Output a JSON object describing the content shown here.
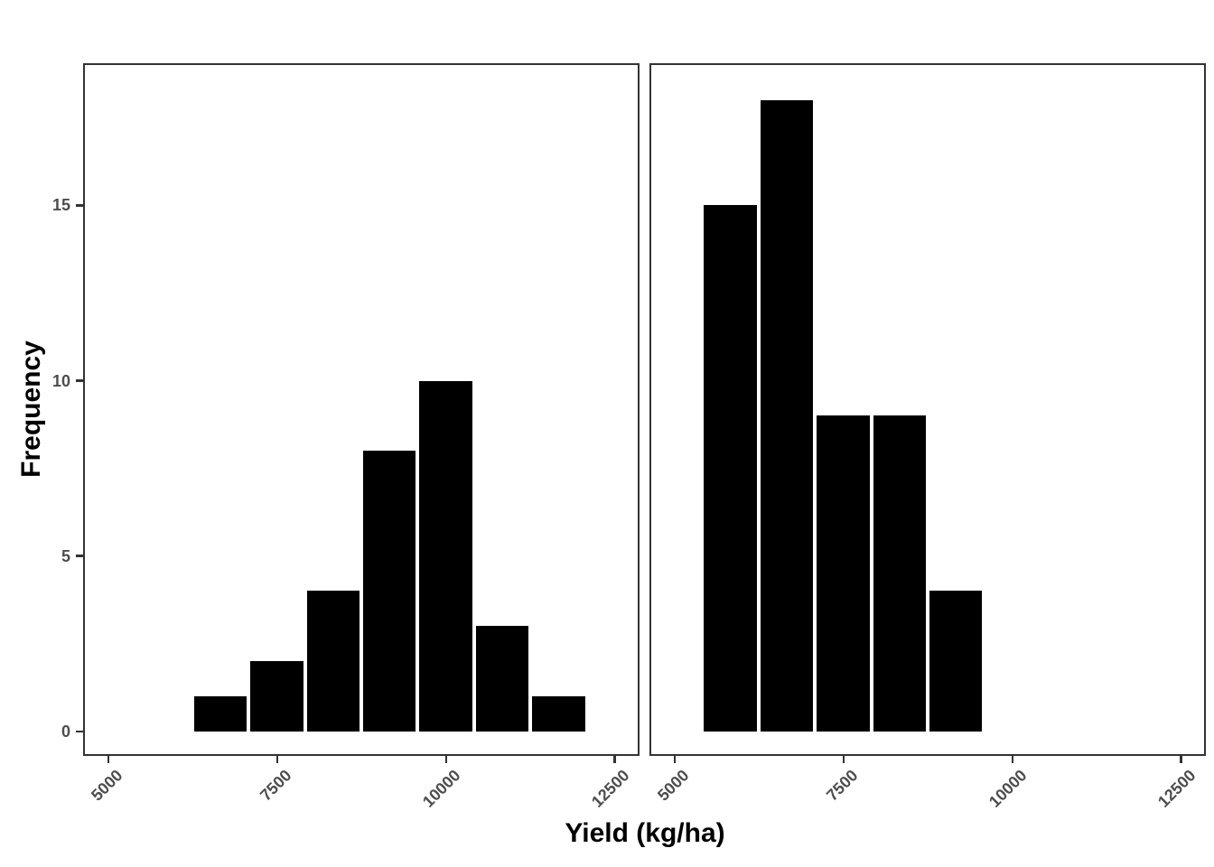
{
  "axes": {
    "x_title": "Yield (kg/ha)",
    "y_title": "Frequency",
    "x_tick_labels": [
      "5000",
      "7500",
      "10000",
      "12500"
    ],
    "y_tick_labels": [
      "0",
      "5",
      "10",
      "15"
    ]
  },
  "chart_data": [
    {
      "type": "histogram",
      "panel": "left",
      "panel_position": 1,
      "xlabel": "Yield (kg/ha)",
      "ylabel": "Frequency",
      "bin_width": 836,
      "bin_edges": [
        6236,
        7072,
        7908,
        8744,
        9580,
        10416,
        11252,
        12088
      ],
      "bin_centers": [
        6654,
        7490,
        8326,
        9162,
        9998,
        10834,
        11670
      ],
      "counts": [
        1,
        2,
        4,
        8,
        10,
        3,
        1
      ],
      "n_total": 29,
      "xlim": [
        4650,
        12840
      ],
      "ylim": [
        -0.65,
        19.0
      ],
      "x_ticks": [
        5000,
        7500,
        10000,
        12500
      ],
      "y_ticks": [
        0,
        5,
        10,
        15
      ],
      "grid": false,
      "legend": false,
      "bar_fill": "#000000"
    },
    {
      "type": "histogram",
      "panel": "right",
      "panel_position": 2,
      "xlabel": "Yield (kg/ha)",
      "ylabel": "Frequency",
      "bin_width": 836,
      "bin_edges": [
        5400,
        6236,
        7072,
        7908,
        8744,
        9580
      ],
      "bin_centers": [
        5818,
        6654,
        7490,
        8326,
        9162
      ],
      "counts": [
        15,
        18,
        9,
        9,
        4
      ],
      "n_total": 55,
      "xlim": [
        4650,
        12840
      ],
      "ylim": [
        -0.65,
        19.0
      ],
      "x_ticks": [
        5000,
        7500,
        10000,
        12500
      ],
      "y_ticks": [
        0,
        5,
        10,
        15
      ],
      "grid": false,
      "legend": false,
      "bar_fill": "#000000"
    }
  ],
  "style": {
    "background": "#ffffff",
    "bar_fill": "#000000",
    "bar_separator": "#ffffff",
    "panel_border_color": "#333333",
    "tick_mark_color": "#333333",
    "tick_label_color": "#4d4d4d",
    "axis_title_color": "#000000"
  }
}
